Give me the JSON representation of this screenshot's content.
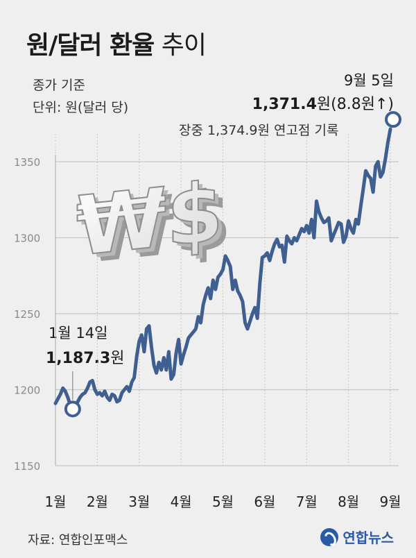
{
  "title_bold": "원/달러 환율",
  "title_light": "추이",
  "subtitle1": "종가 기준",
  "subtitle2": "단위: 원(달러 당)",
  "annot_end_date": "9월 5일",
  "annot_end_value": "1,371.4",
  "annot_end_unit": "원(8.8원↑)",
  "annot_high": "장중 1,374.9원 연고점 기록",
  "annot_start_date": "1월 14일",
  "annot_start_value": "1,187.3",
  "annot_start_unit": "원",
  "source": "자료: 연합인포맥스",
  "logo": "연합뉴스",
  "colors": {
    "line": "#3e5f8f",
    "background": "#efefef",
    "grid": "#c6c6c6"
  },
  "chart_data": {
    "type": "line",
    "title": "원/달러 환율 추이",
    "ylim": [
      1150,
      1380
    ],
    "yticks": [
      1150,
      1200,
      1250,
      1300,
      1350
    ],
    "month_labels": [
      "1월",
      "2월",
      "3월",
      "4월",
      "5월",
      "6월",
      "7월",
      "8월",
      "9월"
    ],
    "grid": "vertical dotted per month, horizontal solid per tick",
    "series": [
      {
        "values": [
          1191,
          1194,
          1197,
          1201,
          1199,
          1195,
          1190,
          1187.3,
          1189,
          1192,
          1195,
          1197,
          1198,
          1201,
          1205,
          1206,
          1200,
          1197,
          1198,
          1196,
          1199,
          1195,
          1193,
          1197,
          1196,
          1192,
          1193,
          1198,
          1200,
          1202,
          1199,
          1205,
          1208,
          1222,
          1232,
          1236,
          1225,
          1240,
          1242,
          1228,
          1216,
          1211,
          1218,
          1213,
          1221,
          1213,
          1225,
          1207,
          1210,
          1224,
          1233,
          1217,
          1223,
          1228,
          1234,
          1236,
          1238,
          1240,
          1248,
          1244,
          1256,
          1262,
          1267,
          1260,
          1272,
          1266,
          1274,
          1276,
          1279,
          1288,
          1285,
          1281,
          1266,
          1272,
          1265,
          1262,
          1258,
          1244,
          1240,
          1245,
          1250,
          1254,
          1247,
          1270,
          1287,
          1288,
          1290,
          1285,
          1291,
          1296,
          1299,
          1294,
          1295,
          1284,
          1301,
          1298,
          1296,
          1300,
          1298,
          1302,
          1306,
          1304,
          1308,
          1303,
          1312,
          1300,
          1324,
          1317,
          1313,
          1310,
          1311,
          1313,
          1298,
          1302,
          1306,
          1310,
          1309,
          1297,
          1301,
          1311,
          1306,
          1303,
          1312,
          1309,
          1321,
          1332,
          1344,
          1341,
          1339,
          1330,
          1347,
          1350,
          1340,
          1343,
          1352,
          1362.6,
          1371.4
        ]
      }
    ]
  }
}
